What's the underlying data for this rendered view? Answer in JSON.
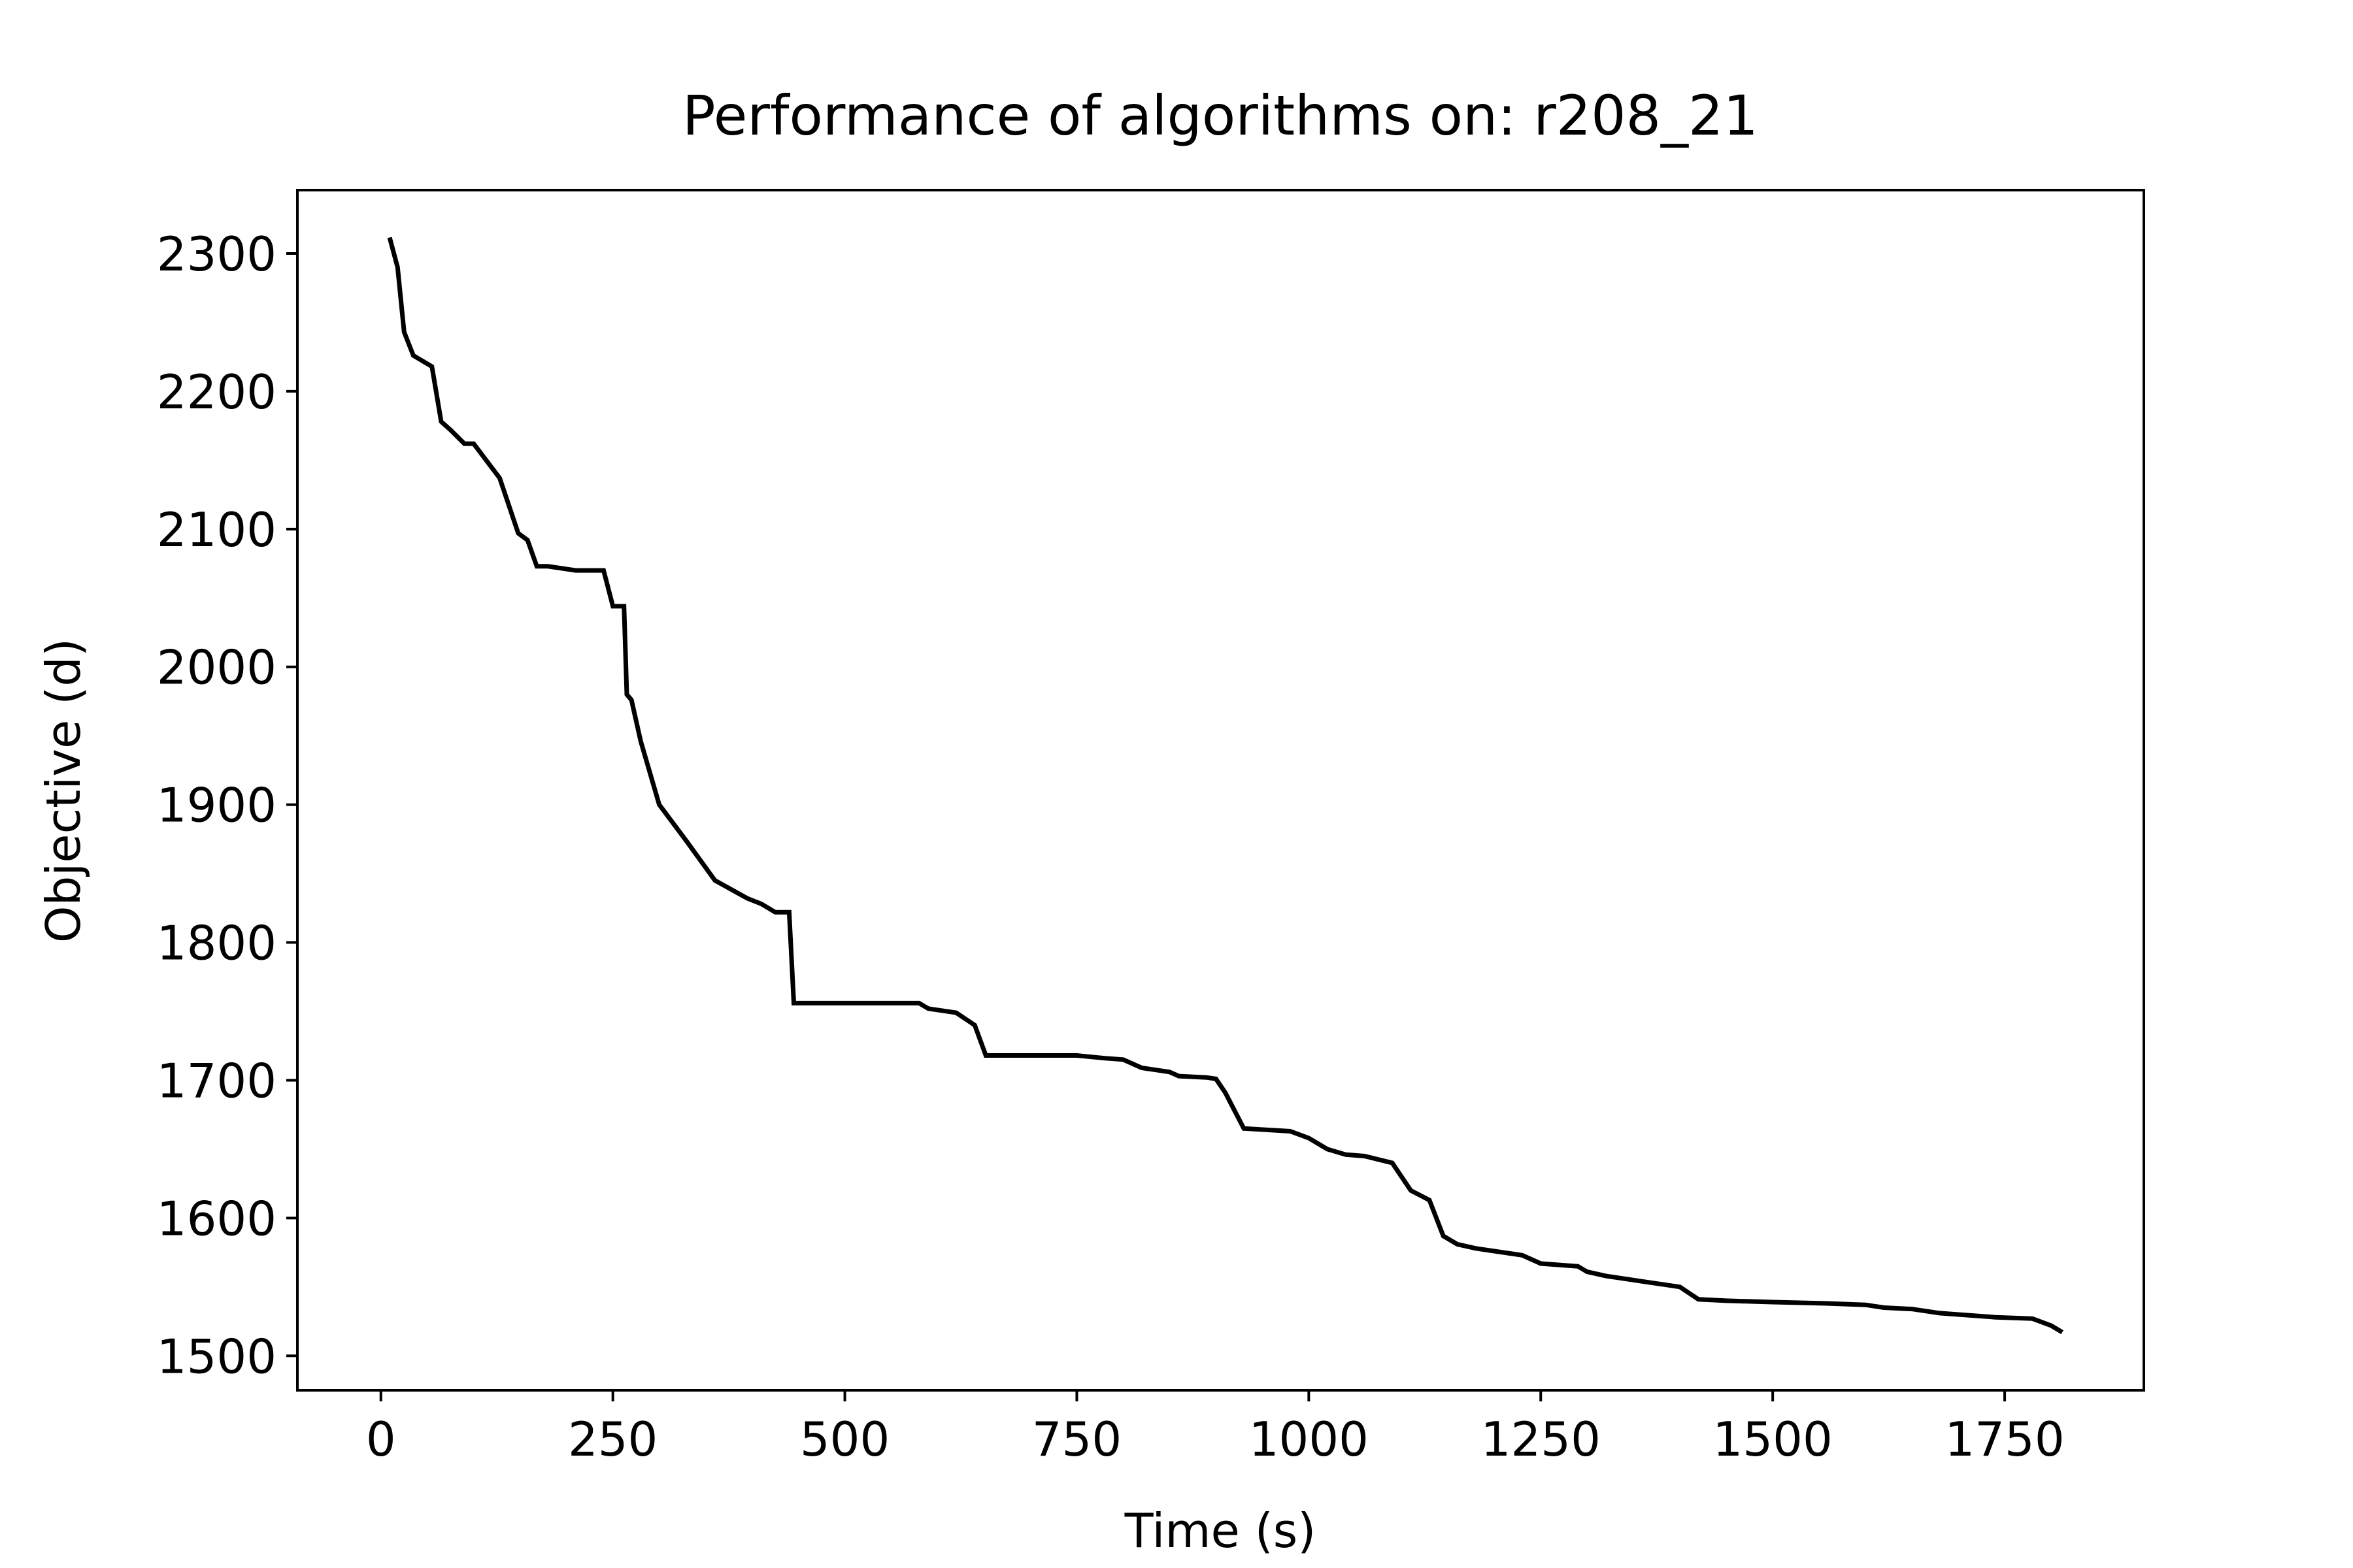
{
  "chart_data": {
    "type": "line",
    "title": "Performance of algorithms on: r208_21",
    "xlabel": "Time (s)",
    "ylabel": "Objective (d)",
    "xlim": [
      -90,
      1900
    ],
    "ylim": [
      1475,
      2346
    ],
    "xticks": [
      0,
      250,
      500,
      750,
      1000,
      1250,
      1500,
      1750
    ],
    "xtick_labels": [
      "0",
      "250",
      "500",
      "750",
      "1000",
      "1250",
      "1500",
      "1750"
    ],
    "yticks": [
      1500,
      1600,
      1700,
      1800,
      1900,
      2000,
      2100,
      2200,
      2300
    ],
    "ytick_labels": [
      "1500",
      "1600",
      "1700",
      "1800",
      "1900",
      "2000",
      "2100",
      "2200",
      "2300"
    ],
    "grid": false,
    "series": [
      {
        "color": "#000000",
        "x": [
          10,
          18,
          25,
          35,
          55,
          65,
          75,
          90,
          100,
          128,
          148,
          158,
          168,
          180,
          210,
          240,
          250,
          262,
          265,
          270,
          280,
          300,
          330,
          360,
          395,
          410,
          425,
          440,
          445,
          500,
          580,
          590,
          620,
          640,
          652,
          700,
          750,
          780,
          800,
          820,
          850,
          860,
          890,
          900,
          910,
          920,
          930,
          980,
          1000,
          1020,
          1040,
          1060,
          1090,
          1110,
          1130,
          1145,
          1160,
          1180,
          1200,
          1230,
          1250,
          1270,
          1290,
          1300,
          1320,
          1340,
          1360,
          1380,
          1400,
          1420,
          1450,
          1500,
          1560,
          1600,
          1620,
          1650,
          1680,
          1700,
          1740,
          1780,
          1800,
          1810
        ],
        "y": [
          2310,
          2290,
          2243,
          2226,
          2218,
          2178,
          2172,
          2162,
          2162,
          2137,
          2097,
          2092,
          2073,
          2073,
          2070,
          2070,
          2044,
          2044,
          1980,
          1976,
          1946,
          1900,
          1873,
          1845,
          1832,
          1828,
          1822,
          1822,
          1756,
          1756,
          1756,
          1752,
          1749,
          1740,
          1718,
          1718,
          1718,
          1716,
          1715,
          1709,
          1706,
          1703,
          1702,
          1701,
          1691,
          1678,
          1665,
          1663,
          1658,
          1650,
          1646,
          1645,
          1640,
          1620,
          1613,
          1587,
          1581,
          1578,
          1576,
          1573,
          1567,
          1566,
          1565,
          1561,
          1558,
          1556,
          1554,
          1552,
          1550,
          1541,
          1540,
          1539,
          1538,
          1537,
          1535,
          1534,
          1531,
          1530,
          1528,
          1527,
          1522,
          1518
        ]
      }
    ]
  }
}
